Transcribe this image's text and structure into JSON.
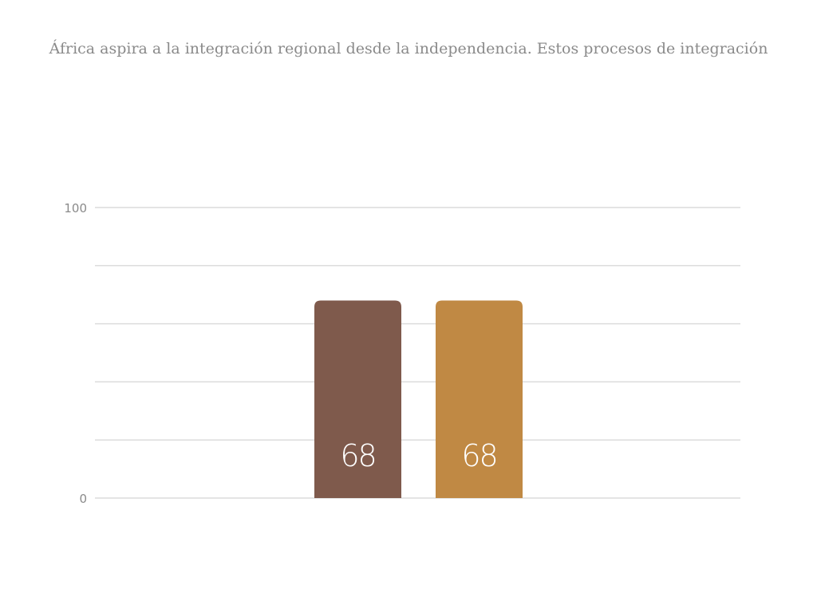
{
  "chart_data": {
    "type": "bar",
    "title": "África aspira a la integración regional desde la independencia. Estos procesos de integración",
    "categories": [
      "",
      ""
    ],
    "values": [
      68,
      68
    ],
    "ylim": [
      0,
      100
    ],
    "y_ticks_labeled": [
      0,
      100
    ],
    "gridlines": [
      0,
      20,
      40,
      60,
      80,
      100
    ],
    "grid": true,
    "bar_colors": [
      "#7f5a4c",
      "#c08944"
    ],
    "gridline_color": "#dcdcdc",
    "show_data_labels": true
  }
}
